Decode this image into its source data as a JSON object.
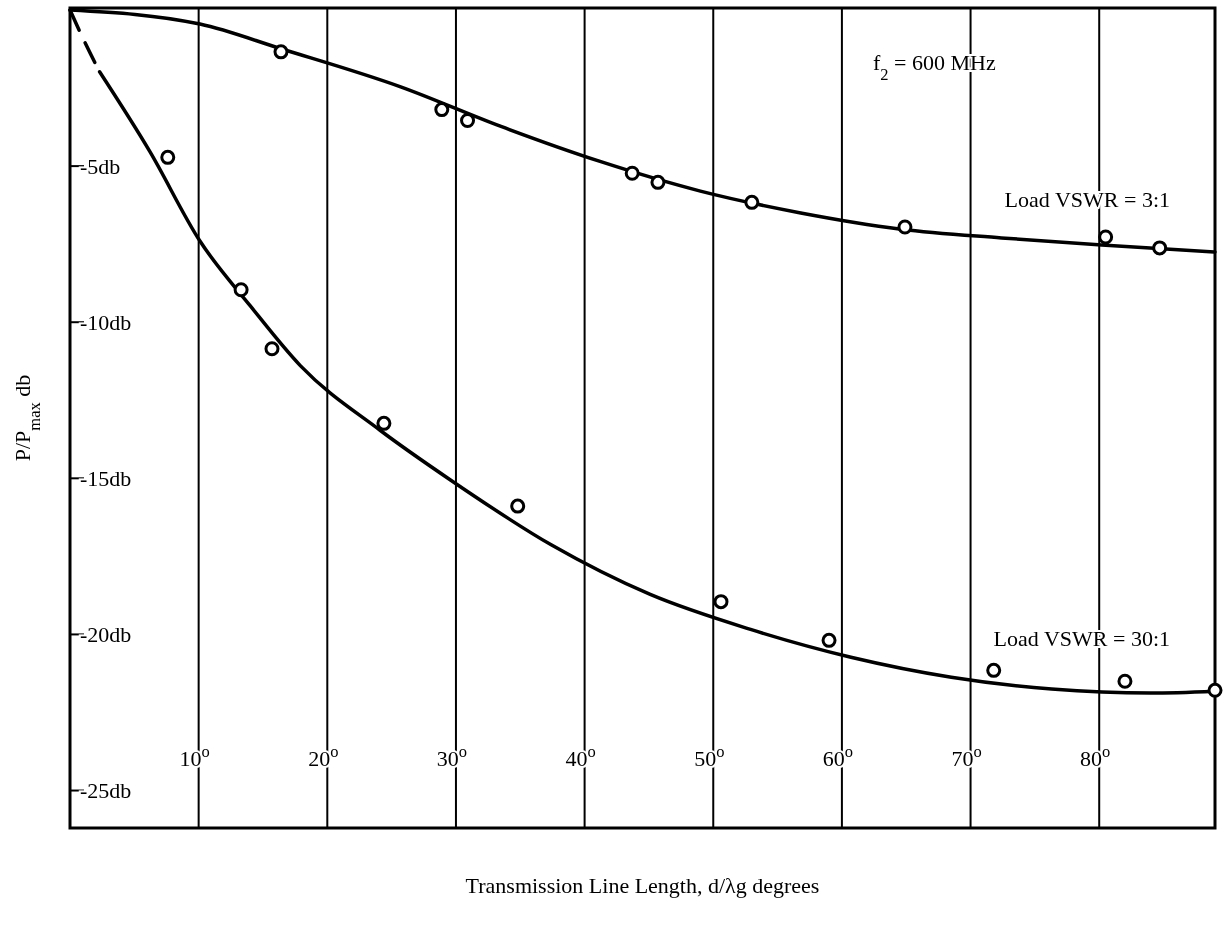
{
  "chart_data": {
    "type": "line",
    "xlabel": "Transmission Line Length, d/λg degrees",
    "ylabel": "P/P$_{max}$  db",
    "annotations": [
      "f$_{2}$ = 600 MHz"
    ],
    "xlim": [
      0,
      89
    ],
    "ylim": [
      -26.2,
      0
    ],
    "xticks": [
      {
        "value": 10,
        "label": "10$^{o}$"
      },
      {
        "value": 20,
        "label": "20$^{o}$"
      },
      {
        "value": 30,
        "label": "30$^{o}$"
      },
      {
        "value": 40,
        "label": "40$^{o}$"
      },
      {
        "value": 50,
        "label": "50$^{o}$"
      },
      {
        "value": 60,
        "label": "60$^{o}$"
      },
      {
        "value": 70,
        "label": "70$^{o}$"
      },
      {
        "value": 80,
        "label": "80$^{o}$"
      }
    ],
    "yticks": [
      {
        "value": -5,
        "label": "-5db"
      },
      {
        "value": -10,
        "label": "-10db"
      },
      {
        "value": -15,
        "label": "-15db"
      },
      {
        "value": -20,
        "label": "-20db"
      },
      {
        "value": -25,
        "label": "-25db"
      }
    ],
    "grid": "x",
    "series": [
      {
        "name": "Load VSWR = 3:1",
        "color": "#000000",
        "marker": "none",
        "line_style": "solid",
        "x": [
          0,
          10.1,
          16.4,
          25.7,
          33.5,
          41.2,
          49,
          56.8,
          64.6,
          72.4,
          80.2,
          89
        ],
        "values": [
          0,
          -0.45,
          -1.24,
          -2.46,
          -3.73,
          -4.85,
          -5.8,
          -6.5,
          -7.02,
          -7.3,
          -7.53,
          -7.75
        ]
      },
      {
        "type": "scatter",
        "color": "#000000",
        "marker": "circle",
        "x": [
          16.4,
          28.9,
          30.9,
          43.7,
          45.7,
          53,
          64.9,
          80.5,
          84.7
        ],
        "values": [
          -1.34,
          -3.19,
          -3.54,
          -5.23,
          -5.52,
          -6.16,
          -6.95,
          -7.27,
          -7.62
        ]
      },
      {
        "name": "Load VSWR = 30:1",
        "color": "#000000",
        "marker": "none",
        "line_style": "solid",
        "x": [
          2.3,
          6.2,
          10.1,
          14,
          17.9,
          24.1,
          29.6,
          37.4,
          45.1,
          52.9,
          60.7,
          68.5,
          76.3,
          84,
          89
        ],
        "values": [
          -1.98,
          -4.53,
          -7.4,
          -9.47,
          -11.39,
          -13.46,
          -15.06,
          -17.13,
          -18.72,
          -19.84,
          -20.73,
          -21.37,
          -21.75,
          -21.88,
          -21.82
        ]
      },
      {
        "color": "#000000",
        "marker": "none",
        "line_style": "dashed",
        "x": [
          0,
          1,
          2.3
        ],
        "values": [
          0,
          -0.9,
          -1.98
        ]
      },
      {
        "type": "scatter",
        "color": "#000000",
        "marker": "circle",
        "x": [
          7.6,
          13.3,
          15.7,
          24.4,
          34.8,
          50.6,
          59,
          71.8,
          82,
          89
        ],
        "values": [
          -4.72,
          -8.96,
          -10.85,
          -13.24,
          -15.89,
          -18.95,
          -20.19,
          -21.15,
          -21.5,
          -21.79
        ]
      }
    ]
  }
}
